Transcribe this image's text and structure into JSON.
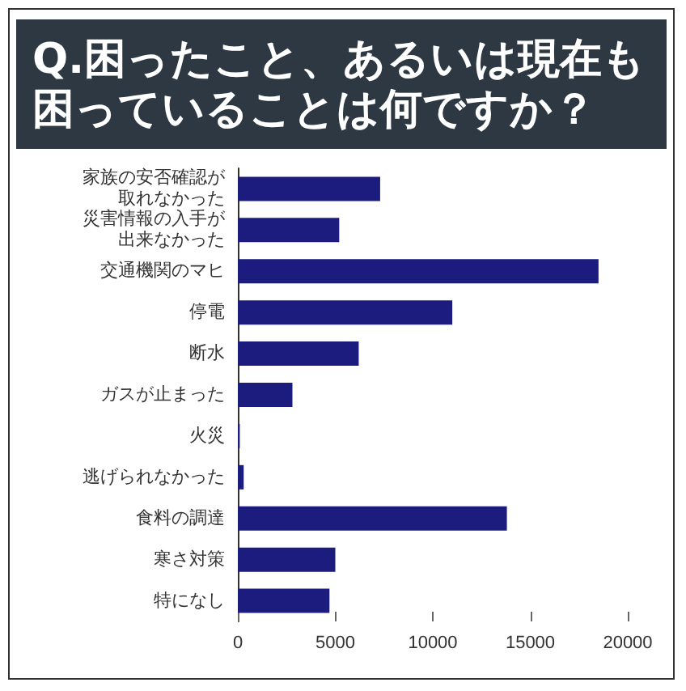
{
  "chart_data": {
    "type": "bar",
    "orientation": "horizontal",
    "title": "Q.困ったこと、あるいは現在も困っていることは何ですか？",
    "categories": [
      "家族の安否確認が取れなかった",
      "災害情報の入手が出来なかった",
      "交通機関のマヒ",
      "停電",
      "断水",
      "ガスが止まった",
      "火災",
      "逃げられなかった",
      "食料の調達",
      "寒さ対策",
      "特になし"
    ],
    "values": [
      7300,
      5200,
      18500,
      11000,
      6200,
      2800,
      100,
      300,
      13800,
      5000,
      4700
    ],
    "color": "#1c1c7e",
    "xlim": [
      0,
      20000
    ],
    "xticks": [
      0,
      5000,
      10000,
      15000,
      20000
    ]
  }
}
